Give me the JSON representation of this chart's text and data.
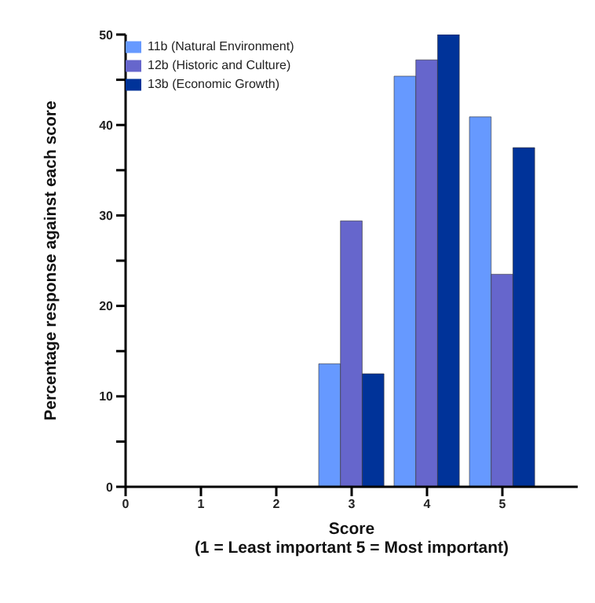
{
  "chart_data": {
    "type": "bar",
    "xlabel": "Score\n(1 = Least important 5 = Most important)",
    "ylabel": "Percentage response against each score",
    "x": [
      3,
      4,
      5
    ],
    "series": [
      {
        "name": "11b (Natural Environment)",
        "color": "#6699ff",
        "values": [
          13.6,
          45.4,
          40.9
        ]
      },
      {
        "name": "12b (Historic and Culture)",
        "color": "#6666cc",
        "values": [
          29.4,
          47.2,
          23.5
        ]
      },
      {
        "name": "13b (Economic Growth)",
        "color": "#003399",
        "values": [
          12.5,
          50,
          37.5
        ]
      }
    ],
    "xlim": [
      0,
      6
    ],
    "xticks": [
      0,
      1,
      2,
      3,
      4,
      5
    ],
    "ylim": [
      0,
      50
    ],
    "yticks": [
      0,
      {
        "value": 5,
        "label": null
      },
      10,
      {
        "value": 15,
        "label": null
      },
      20,
      {
        "value": 25,
        "label": null
      },
      30,
      {
        "value": 35,
        "label": null
      },
      40,
      {
        "value": 45,
        "label": null
      },
      50
    ],
    "grid": false,
    "legend": "top left"
  }
}
